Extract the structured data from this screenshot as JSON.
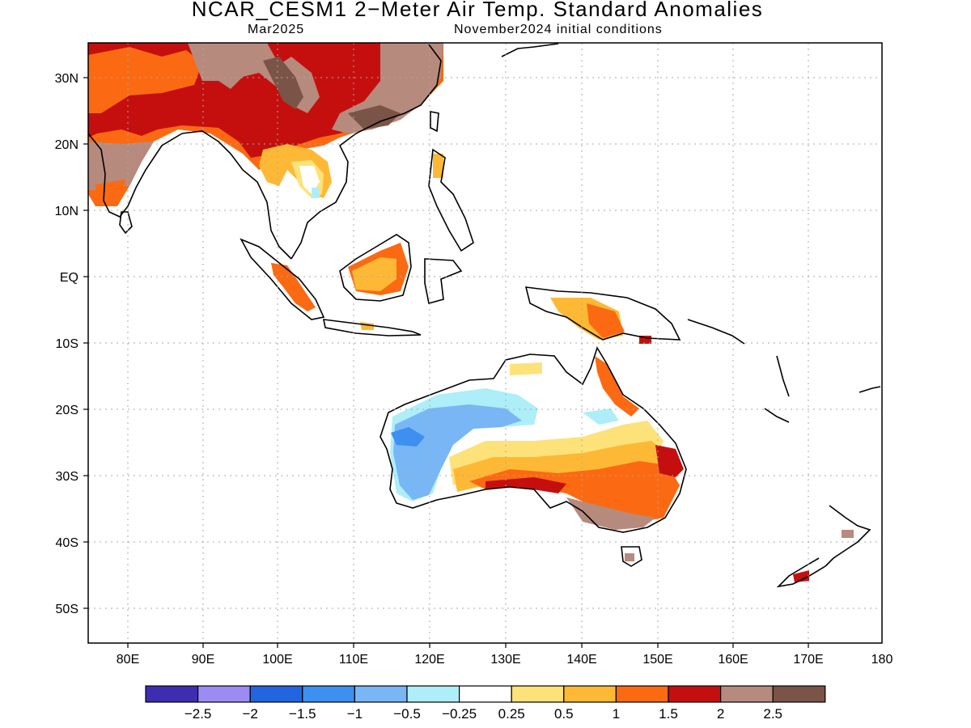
{
  "title": "NCAR_CESM1 2−Meter Air Temp. Standard Anomalies",
  "subtitle_left": "Mar2025",
  "subtitle_right": "November2024 initial conditions",
  "lat_ticks": [
    "30N",
    "20N",
    "10N",
    "EQ",
    "10S",
    "20S",
    "30S",
    "40S",
    "50S"
  ],
  "lon_ticks": [
    "80E",
    "90E",
    "100E",
    "110E",
    "120E",
    "130E",
    "140E",
    "150E",
    "160E",
    "170E",
    "180"
  ],
  "colorbar": {
    "colors": [
      "#3f2db0",
      "#9b8bf2",
      "#2166e0",
      "#3d8ff0",
      "#78b6f5",
      "#aeeef8",
      "#ffffff",
      "#fde27a",
      "#fdb935",
      "#fb6a12",
      "#c50f0f",
      "#b78a7e",
      "#7a5446"
    ],
    "labels": [
      "−2.5",
      "−2",
      "−1.5",
      "−1",
      "−0.5",
      "−0.25",
      "0.25",
      "0.5",
      "1",
      "1.5",
      "2",
      "2.5"
    ]
  }
}
